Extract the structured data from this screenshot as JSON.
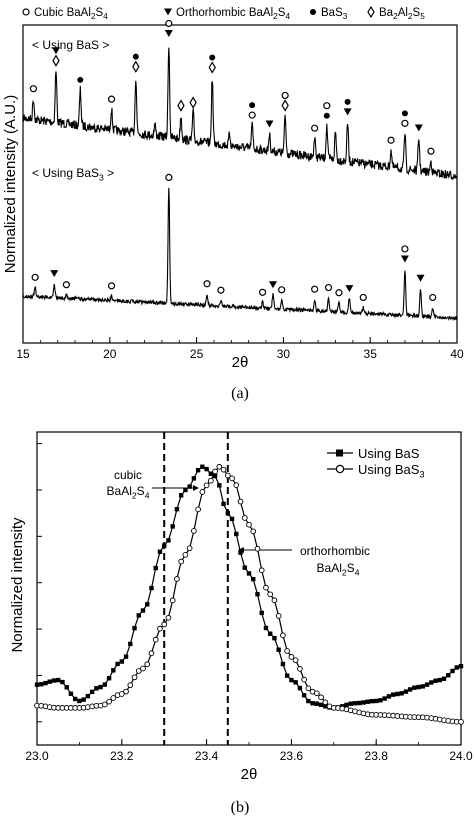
{
  "chart_data": [
    {
      "panel_label": "(a)",
      "type": "line",
      "xlabel": "2θ",
      "ylabel": "Normalized intensity (A.U.)",
      "xlim": [
        15,
        40
      ],
      "xticks": [
        15,
        20,
        25,
        30,
        35,
        40
      ],
      "legend": [
        {
          "marker": "○",
          "text": "Cubic BaAl2S4"
        },
        {
          "marker": "▼",
          "text": "Orthorhombic BaAl2S4"
        },
        {
          "marker": "●",
          "text": "BaS3"
        },
        {
          "marker": "◇",
          "text": "Ba2Al2S5"
        }
      ],
      "legend_placement": "top",
      "series": [
        {
          "name": "< Using BaS >",
          "peaks": [
            {
              "x": 15.6,
              "h": 0.22
            },
            {
              "x": 16.9,
              "h": 0.55
            },
            {
              "x": 18.3,
              "h": 0.38
            },
            {
              "x": 20.1,
              "h": 0.22
            },
            {
              "x": 21.5,
              "h": 0.6
            },
            {
              "x": 22.6,
              "h": 0.12
            },
            {
              "x": 23.4,
              "h": 1.0
            },
            {
              "x": 24.1,
              "h": 0.25
            },
            {
              "x": 24.8,
              "h": 0.3
            },
            {
              "x": 25.9,
              "h": 0.7
            },
            {
              "x": 26.9,
              "h": 0.12
            },
            {
              "x": 28.2,
              "h": 0.25
            },
            {
              "x": 29.2,
              "h": 0.18
            },
            {
              "x": 30.1,
              "h": 0.4
            },
            {
              "x": 31.8,
              "h": 0.2
            },
            {
              "x": 32.5,
              "h": 0.35
            },
            {
              "x": 33.0,
              "h": 0.3
            },
            {
              "x": 33.7,
              "h": 0.42
            },
            {
              "x": 36.2,
              "h": 0.18
            },
            {
              "x": 37.0,
              "h": 0.38
            },
            {
              "x": 37.8,
              "h": 0.35
            },
            {
              "x": 38.5,
              "h": 0.12
            }
          ],
          "markers": [
            {
              "x": 15.6,
              "symbols": "○"
            },
            {
              "x": 16.9,
              "symbols": "▼◇"
            },
            {
              "x": 18.3,
              "symbols": "●"
            },
            {
              "x": 20.1,
              "symbols": "○"
            },
            {
              "x": 21.5,
              "symbols": "●◇"
            },
            {
              "x": 23.4,
              "symbols": "○▼"
            },
            {
              "x": 24.1,
              "symbols": "◇"
            },
            {
              "x": 24.8,
              "symbols": "◇"
            },
            {
              "x": 25.9,
              "symbols": "●◇"
            },
            {
              "x": 28.2,
              "symbols": "●○"
            },
            {
              "x": 29.2,
              "symbols": "▼"
            },
            {
              "x": 30.1,
              "symbols": "○◇"
            },
            {
              "x": 31.8,
              "symbols": "○"
            },
            {
              "x": 32.5,
              "symbols": "○●"
            },
            {
              "x": 33.7,
              "symbols": "●▼"
            },
            {
              "x": 36.2,
              "symbols": "○"
            },
            {
              "x": 37.0,
              "symbols": "●○"
            },
            {
              "x": 37.8,
              "symbols": "▼"
            },
            {
              "x": 38.5,
              "symbols": "○"
            }
          ]
        },
        {
          "name": "< Using BaS3 >",
          "peaks": [
            {
              "x": 15.7,
              "h": 0.08
            },
            {
              "x": 16.8,
              "h": 0.12
            },
            {
              "x": 17.5,
              "h": 0.03
            },
            {
              "x": 20.1,
              "h": 0.04
            },
            {
              "x": 23.4,
              "h": 1.0
            },
            {
              "x": 25.6,
              "h": 0.1
            },
            {
              "x": 26.4,
              "h": 0.05
            },
            {
              "x": 28.8,
              "h": 0.05
            },
            {
              "x": 29.4,
              "h": 0.12
            },
            {
              "x": 29.9,
              "h": 0.08
            },
            {
              "x": 31.8,
              "h": 0.1
            },
            {
              "x": 32.6,
              "h": 0.12
            },
            {
              "x": 33.2,
              "h": 0.08
            },
            {
              "x": 33.8,
              "h": 0.12
            },
            {
              "x": 34.6,
              "h": 0.05
            },
            {
              "x": 37.0,
              "h": 0.4
            },
            {
              "x": 37.9,
              "h": 0.24
            },
            {
              "x": 38.6,
              "h": 0.08
            }
          ],
          "markers": [
            {
              "x": 15.7,
              "symbols": "○"
            },
            {
              "x": 16.8,
              "symbols": "▼"
            },
            {
              "x": 17.5,
              "symbols": "○"
            },
            {
              "x": 20.1,
              "symbols": "○"
            },
            {
              "x": 23.4,
              "symbols": "○"
            },
            {
              "x": 25.6,
              "symbols": "○"
            },
            {
              "x": 26.4,
              "symbols": "○"
            },
            {
              "x": 28.8,
              "symbols": "○"
            },
            {
              "x": 29.4,
              "symbols": "▼"
            },
            {
              "x": 29.9,
              "symbols": "○"
            },
            {
              "x": 31.8,
              "symbols": "○"
            },
            {
              "x": 32.6,
              "symbols": "○"
            },
            {
              "x": 33.2,
              "symbols": "○"
            },
            {
              "x": 33.8,
              "symbols": "▼"
            },
            {
              "x": 34.6,
              "symbols": "○"
            },
            {
              "x": 37.0,
              "symbols": "○▼"
            },
            {
              "x": 37.9,
              "symbols": "▼"
            },
            {
              "x": 38.6,
              "symbols": "○"
            }
          ]
        }
      ]
    },
    {
      "panel_label": "(b)",
      "type": "line",
      "xlabel": "2θ",
      "ylabel": "Normalized intensity",
      "xlim": [
        23.0,
        24.0
      ],
      "xticks": [
        23.0,
        23.2,
        23.4,
        23.6,
        23.8,
        24.0
      ],
      "xtick_labels": [
        "23.0",
        "23.2",
        "23.4",
        "23.6",
        "23.8",
        "24.0"
      ],
      "ylim": [
        0,
        1.35
      ],
      "legend_placement": "top-right",
      "series": [
        {
          "name": "Using BaS",
          "marker": "filled-square",
          "x": [
            23.0,
            23.05,
            23.1,
            23.15,
            23.2,
            23.25,
            23.3,
            23.35,
            23.39,
            23.42,
            23.45,
            23.5,
            23.55,
            23.6,
            23.65,
            23.7,
            23.75,
            23.8,
            23.85,
            23.9,
            23.95,
            24.0
          ],
          "y": [
            0.26,
            0.28,
            0.19,
            0.25,
            0.36,
            0.58,
            0.86,
            1.1,
            1.2,
            1.16,
            1.0,
            0.74,
            0.48,
            0.28,
            0.18,
            0.16,
            0.18,
            0.19,
            0.22,
            0.25,
            0.28,
            0.34
          ]
        },
        {
          "name": "Using BaS3",
          "marker": "open-circle",
          "x": [
            23.0,
            23.05,
            23.1,
            23.15,
            23.2,
            23.25,
            23.3,
            23.35,
            23.4,
            23.43,
            23.46,
            23.5,
            23.55,
            23.6,
            23.65,
            23.7,
            23.8,
            23.9,
            24.0
          ],
          "y": [
            0.17,
            0.16,
            0.16,
            0.17,
            0.22,
            0.33,
            0.52,
            0.82,
            1.12,
            1.2,
            1.15,
            0.95,
            0.65,
            0.38,
            0.23,
            0.16,
            0.13,
            0.12,
            0.1
          ]
        }
      ],
      "reference_lines": [
        {
          "x": 23.3,
          "style": "dashed",
          "label_lines": [
            "cubic",
            "BaAl2S4"
          ]
        },
        {
          "x": 23.45,
          "style": "dashed",
          "label_lines": [
            "orthorhombic",
            "BaAl2S4"
          ]
        }
      ]
    }
  ]
}
